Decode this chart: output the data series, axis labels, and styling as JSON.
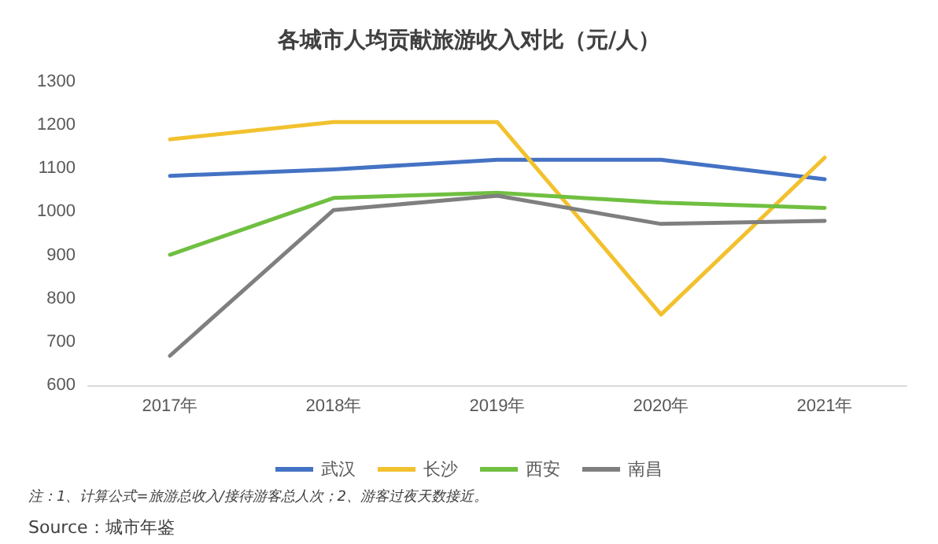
{
  "chart_data": {
    "type": "line",
    "title": "各城市人均贡献旅游收入对比（元/人）",
    "categories": [
      "2017年",
      "2018年",
      "2019年",
      "2020年",
      "2021年"
    ],
    "series": [
      {
        "name": "武汉",
        "color": "#4472c4",
        "values": [
          1083,
          1098,
          1120,
          1120,
          1075
        ]
      },
      {
        "name": "长沙",
        "color": "#f2c12e",
        "values": [
          1167,
          1207,
          1207,
          763,
          1125
        ]
      },
      {
        "name": "西安",
        "color": "#70bf41",
        "values": [
          901,
          1032,
          1044,
          1021,
          1009
        ]
      },
      {
        "name": "南昌",
        "color": "#7f7f7f",
        "values": [
          668,
          1004,
          1037,
          972,
          979
        ]
      }
    ],
    "ylim": [
      600,
      1300
    ],
    "yticks": [
      600,
      700,
      800,
      900,
      1000,
      1100,
      1200,
      1300
    ],
    "grid": false,
    "legend": "bottom",
    "marker": "none",
    "line_style": "solid",
    "annotations": [
      "注：1、计算公式=旅游总收入/接待游客总人次；2、游客过夜天数接近。",
      "Source：城市年鉴"
    ]
  }
}
